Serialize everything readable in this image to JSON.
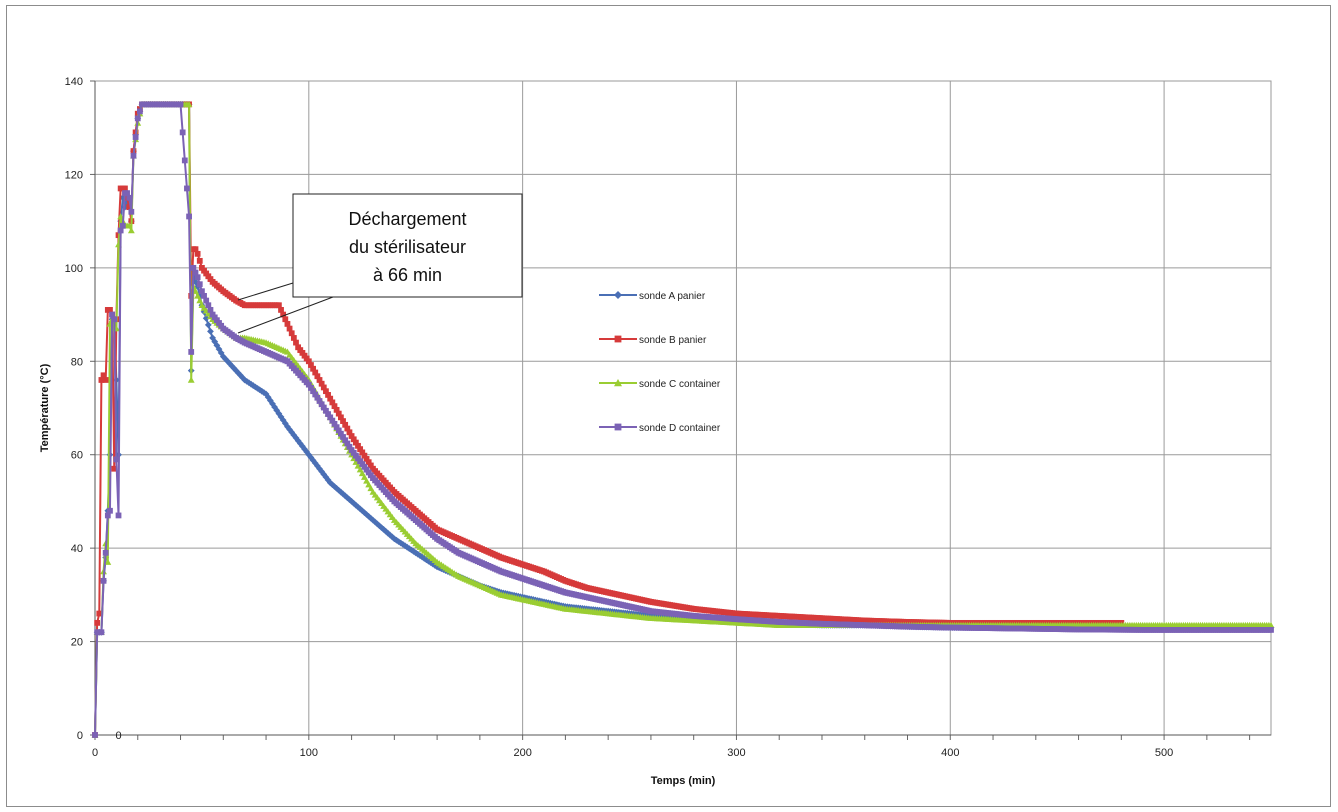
{
  "chart_data": {
    "type": "line",
    "title": "",
    "xlabel": "Temps (min)",
    "ylabel": "Température (°C)",
    "xlim": [
      0,
      550
    ],
    "ylim": [
      0,
      140
    ],
    "xticks": [
      0,
      100,
      200,
      300,
      400,
      500
    ],
    "yticks": [
      0,
      20,
      40,
      60,
      80,
      100,
      120,
      140
    ],
    "grid": true,
    "legend_position": "right",
    "zero_marker_label": "0",
    "annotation": {
      "lines": [
        "Déchargement",
        "du stérilisateur",
        "à 66 min"
      ],
      "target_x": 66
    },
    "series": [
      {
        "name": "sonde A panier",
        "color": "#4a6fb5",
        "marker": "diamond",
        "x": [
          0,
          1,
          2,
          3,
          4,
          5,
          6,
          7,
          8,
          9,
          10,
          11,
          12,
          13,
          14,
          15,
          16,
          17,
          18,
          20,
          22,
          24,
          26,
          28,
          30,
          35,
          40,
          44,
          45,
          46,
          47,
          48,
          50,
          55,
          60,
          66,
          70,
          80,
          90,
          100,
          110,
          120,
          130,
          140,
          150,
          160,
          170,
          180,
          190,
          200,
          210,
          220,
          230,
          240,
          250,
          260,
          280,
          300,
          320,
          340,
          360,
          380,
          400,
          430,
          460,
          490,
          520,
          550
        ],
        "values": [
          0,
          22,
          22,
          22,
          33,
          38,
          48,
          60,
          89,
          88,
          76,
          60,
          110,
          115,
          113,
          114,
          114,
          110,
          125,
          132,
          135,
          135,
          135,
          135,
          135,
          135,
          135,
          135,
          78,
          98,
          97,
          96,
          92,
          85,
          81,
          78,
          76,
          73,
          66,
          60,
          54,
          50,
          46,
          42,
          39,
          36,
          34,
          32,
          30.5,
          29.5,
          28.5,
          27.5,
          27,
          26.5,
          26,
          25.5,
          25,
          24.5,
          24,
          23.5,
          23.5,
          23.2,
          23,
          23,
          23,
          23,
          23,
          23
        ]
      },
      {
        "name": "sonde B panier",
        "color": "#d63a3a",
        "marker": "square",
        "x": [
          0,
          1,
          2,
          3,
          4,
          5,
          6,
          7,
          8,
          9,
          10,
          11,
          12,
          13,
          14,
          15,
          16,
          17,
          18,
          20,
          22,
          24,
          26,
          28,
          30,
          35,
          40,
          44,
          45,
          46,
          47,
          48,
          50,
          55,
          60,
          66,
          70,
          80,
          86,
          90,
          95,
          100,
          110,
          120,
          130,
          140,
          150,
          160,
          170,
          180,
          190,
          200,
          210,
          220,
          230,
          240,
          250,
          260,
          280,
          300,
          320,
          340,
          360,
          380,
          400,
          430,
          460,
          480
        ],
        "values": [
          0,
          24,
          26,
          76,
          77,
          76,
          91,
          91,
          90,
          57,
          89,
          107,
          117,
          117,
          117,
          115,
          113,
          110,
          125,
          133,
          135,
          135,
          135,
          135,
          135,
          135,
          135,
          135,
          94,
          104,
          104,
          103,
          100,
          97,
          95,
          93,
          92,
          92,
          92,
          88,
          83,
          80,
          72,
          64,
          57,
          52,
          48,
          44,
          42,
          40,
          38,
          36.5,
          35,
          33,
          31.5,
          30.5,
          29.5,
          28.5,
          27,
          26,
          25.5,
          25,
          24.5,
          24.2,
          24,
          24,
          24,
          24
        ]
      },
      {
        "name": "sonde C container",
        "color": "#9acd32",
        "marker": "triangle",
        "x": [
          0,
          1,
          2,
          3,
          4,
          5,
          6,
          7,
          8,
          9,
          10,
          11,
          12,
          13,
          14,
          15,
          16,
          17,
          18,
          20,
          22,
          24,
          26,
          28,
          30,
          35,
          40,
          44,
          45,
          46,
          47,
          48,
          50,
          55,
          60,
          66,
          70,
          80,
          90,
          100,
          110,
          120,
          130,
          140,
          150,
          160,
          170,
          180,
          190,
          200,
          210,
          220,
          230,
          240,
          250,
          260,
          280,
          300,
          320,
          340,
          360,
          380,
          400,
          430,
          460,
          490,
          520,
          550
        ],
        "values": [
          0,
          22,
          22,
          22,
          35,
          41,
          37,
          88,
          89,
          87,
          87,
          105,
          111,
          110,
          109,
          109,
          109,
          108,
          124,
          131,
          135,
          135,
          135,
          135,
          135,
          135,
          135,
          135,
          76,
          96,
          95,
          94,
          92,
          89,
          87,
          85,
          85,
          84,
          82,
          76,
          68,
          60,
          52,
          46,
          41,
          37,
          34,
          32,
          30,
          29,
          28,
          27,
          26.5,
          26,
          25.5,
          25,
          24.5,
          24,
          23.5,
          23.5,
          23.5,
          23.5,
          23.5,
          23.5,
          23.5,
          23.5,
          23.5,
          23.5
        ]
      },
      {
        "name": "sonde D container",
        "color": "#7b62b5",
        "marker": "square",
        "x": [
          0,
          1,
          2,
          3,
          4,
          5,
          6,
          7,
          8,
          9,
          10,
          11,
          12,
          13,
          14,
          15,
          16,
          17,
          18,
          20,
          22,
          24,
          26,
          28,
          30,
          35,
          40,
          44,
          45,
          46,
          47,
          48,
          50,
          55,
          60,
          66,
          70,
          80,
          90,
          100,
          110,
          120,
          130,
          140,
          150,
          160,
          170,
          180,
          190,
          200,
          210,
          220,
          230,
          240,
          250,
          260,
          280,
          300,
          320,
          340,
          360,
          380,
          400,
          430,
          460,
          490,
          520,
          550
        ],
        "values": [
          0,
          22,
          22,
          22,
          33,
          39,
          47,
          48,
          90,
          89,
          59,
          47,
          108,
          109,
          116,
          116,
          115,
          112,
          124,
          132,
          135,
          135,
          135,
          135,
          135,
          135,
          135,
          111,
          82,
          100,
          99,
          98,
          95,
          90,
          87,
          85,
          84,
          82,
          80,
          75,
          68,
          61,
          55,
          50,
          46,
          42,
          39,
          37,
          35,
          33.5,
          32,
          30.5,
          29.5,
          28.5,
          27.5,
          26.5,
          25.5,
          24.8,
          24.2,
          23.8,
          23.5,
          23.2,
          23,
          22.8,
          22.6,
          22.5,
          22.5,
          22.5
        ]
      }
    ]
  }
}
